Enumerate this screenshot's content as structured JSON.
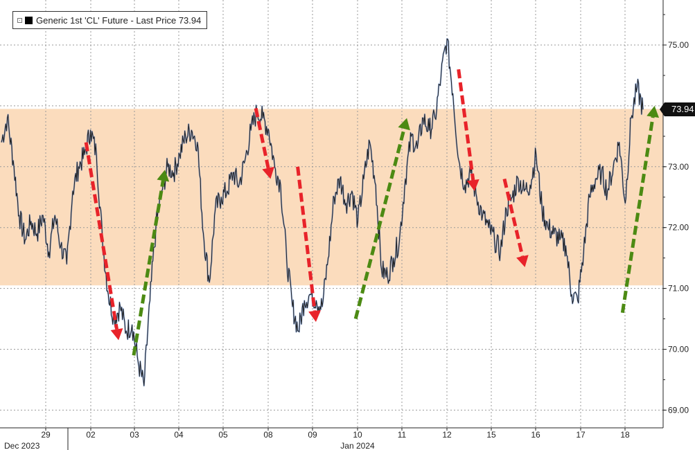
{
  "legend": {
    "label": "Generic 1st 'CL' Future - Last Price 73.94",
    "swatch_color": "#000000"
  },
  "last_price_tag": "73.94",
  "colors": {
    "band": "#fbdcbd",
    "price_line": "#1f1f1f",
    "price_highlight": "#4a7bd0",
    "down_arrow": "#e8232a",
    "up_arrow": "#4c8a13",
    "grid": "#999999"
  },
  "chart_data": {
    "type": "line",
    "title": "",
    "xlabel": "",
    "ylabel": "",
    "ylim": [
      68.8,
      75.7
    ],
    "y_ticks": [
      "75.00",
      "74.00",
      "73.00",
      "72.00",
      "71.00",
      "70.00",
      "69.00"
    ],
    "x_ticks": [
      "29",
      "02",
      "03",
      "04",
      "05",
      "08",
      "09",
      "10",
      "11",
      "12",
      "15",
      "16",
      "17",
      "18"
    ],
    "x_group_labels": [
      "Dec 2023",
      "Jan 2024"
    ],
    "grid": true,
    "highlighted_range": [
      71.05,
      73.95
    ],
    "series": [
      {
        "values": [
          73.4,
          73.8,
          73.1,
          72.2,
          71.8,
          72.1,
          71.9,
          72.2,
          71.6,
          72.2,
          71.7,
          71.4,
          72.6,
          73.0,
          73.2,
          73.6,
          73.2,
          71.8,
          70.9,
          70.5,
          70.7,
          70.3,
          70.4,
          69.8,
          69.4,
          70.8,
          72.0,
          72.6,
          73.0,
          72.9,
          73.2,
          73.5,
          73.6,
          73.4,
          71.9,
          71.1,
          72.3,
          72.5,
          72.6,
          72.9,
          72.7,
          73.1,
          73.6,
          73.9,
          73.8,
          73.6,
          73.0,
          72.7,
          71.5,
          70.7,
          70.3,
          70.8,
          70.9,
          70.8,
          70.7,
          71.5,
          72.5,
          72.8,
          72.4,
          72.6,
          72.1,
          72.8,
          73.4,
          72.7,
          71.3,
          71.2,
          71.5,
          71.8,
          72.8,
          73.5,
          73.3,
          73.8,
          73.6,
          73.8,
          74.5,
          75.1,
          74.2,
          73.1,
          72.7,
          72.9,
          72.5,
          72.2,
          72.0,
          71.8,
          71.6,
          72.3,
          72.5,
          72.8,
          72.6,
          72.7,
          73.2,
          72.3,
          72.0,
          71.9,
          71.8,
          71.7,
          70.9,
          70.8,
          71.6,
          72.5,
          72.8,
          72.9,
          72.6,
          73.0,
          73.4,
          72.4,
          73.8,
          74.3,
          73.94
        ]
      }
    ],
    "annotations": {
      "down_arrows": [
        {
          "from": [
            1.9,
            73.4
          ],
          "to": [
            2.63,
            70.15
          ]
        },
        {
          "from": [
            6.65,
            73.0
          ],
          "to": [
            7.06,
            70.45
          ]
        },
        {
          "from": [
            11.29,
            72.8
          ],
          "to": [
            11.75,
            71.35
          ]
        },
        {
          "from": [
            5.71,
            73.96
          ],
          "to": [
            6.04,
            72.8
          ]
        },
        {
          "from": [
            10.26,
            74.6
          ],
          "to": [
            10.62,
            72.6
          ]
        }
      ],
      "up_arrows": [
        {
          "from": [
            2.97,
            69.9
          ],
          "to": [
            3.67,
            72.95
          ]
        },
        {
          "from": [
            7.95,
            70.5
          ],
          "to": [
            9.1,
            73.8
          ]
        },
        {
          "from": [
            13.94,
            70.6
          ],
          "to": [
            14.66,
            74.0
          ]
        }
      ]
    }
  }
}
